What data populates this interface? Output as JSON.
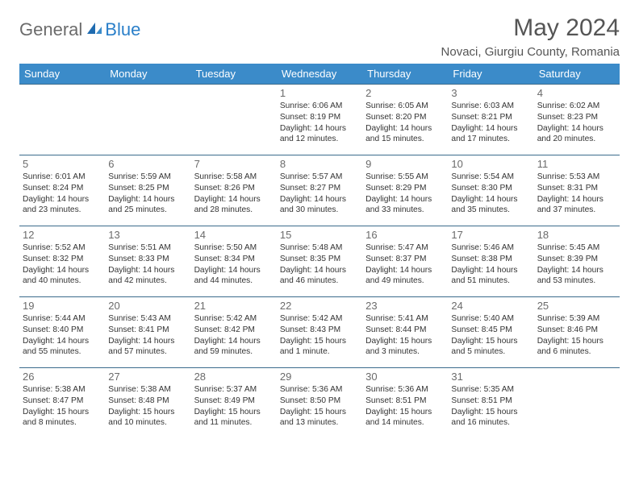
{
  "logo": {
    "part1": "General",
    "part2": "Blue"
  },
  "title": "May 2024",
  "location": "Novaci, Giurgiu County, Romania",
  "colors": {
    "header_bg": "#3b8bc9",
    "header_text": "#ffffff",
    "border": "#3b6b8c",
    "logo_gray": "#6b6b6b",
    "logo_blue": "#2a7fc9",
    "text": "#333333",
    "daynum": "#6b6b6b"
  },
  "weekdays": [
    "Sunday",
    "Monday",
    "Tuesday",
    "Wednesday",
    "Thursday",
    "Friday",
    "Saturday"
  ],
  "weeks": [
    [
      null,
      null,
      null,
      {
        "n": "1",
        "sr": "6:06 AM",
        "ss": "8:19 PM",
        "dl": "14 hours and 12 minutes."
      },
      {
        "n": "2",
        "sr": "6:05 AM",
        "ss": "8:20 PM",
        "dl": "14 hours and 15 minutes."
      },
      {
        "n": "3",
        "sr": "6:03 AM",
        "ss": "8:21 PM",
        "dl": "14 hours and 17 minutes."
      },
      {
        "n": "4",
        "sr": "6:02 AM",
        "ss": "8:23 PM",
        "dl": "14 hours and 20 minutes."
      }
    ],
    [
      {
        "n": "5",
        "sr": "6:01 AM",
        "ss": "8:24 PM",
        "dl": "14 hours and 23 minutes."
      },
      {
        "n": "6",
        "sr": "5:59 AM",
        "ss": "8:25 PM",
        "dl": "14 hours and 25 minutes."
      },
      {
        "n": "7",
        "sr": "5:58 AM",
        "ss": "8:26 PM",
        "dl": "14 hours and 28 minutes."
      },
      {
        "n": "8",
        "sr": "5:57 AM",
        "ss": "8:27 PM",
        "dl": "14 hours and 30 minutes."
      },
      {
        "n": "9",
        "sr": "5:55 AM",
        "ss": "8:29 PM",
        "dl": "14 hours and 33 minutes."
      },
      {
        "n": "10",
        "sr": "5:54 AM",
        "ss": "8:30 PM",
        "dl": "14 hours and 35 minutes."
      },
      {
        "n": "11",
        "sr": "5:53 AM",
        "ss": "8:31 PM",
        "dl": "14 hours and 37 minutes."
      }
    ],
    [
      {
        "n": "12",
        "sr": "5:52 AM",
        "ss": "8:32 PM",
        "dl": "14 hours and 40 minutes."
      },
      {
        "n": "13",
        "sr": "5:51 AM",
        "ss": "8:33 PM",
        "dl": "14 hours and 42 minutes."
      },
      {
        "n": "14",
        "sr": "5:50 AM",
        "ss": "8:34 PM",
        "dl": "14 hours and 44 minutes."
      },
      {
        "n": "15",
        "sr": "5:48 AM",
        "ss": "8:35 PM",
        "dl": "14 hours and 46 minutes."
      },
      {
        "n": "16",
        "sr": "5:47 AM",
        "ss": "8:37 PM",
        "dl": "14 hours and 49 minutes."
      },
      {
        "n": "17",
        "sr": "5:46 AM",
        "ss": "8:38 PM",
        "dl": "14 hours and 51 minutes."
      },
      {
        "n": "18",
        "sr": "5:45 AM",
        "ss": "8:39 PM",
        "dl": "14 hours and 53 minutes."
      }
    ],
    [
      {
        "n": "19",
        "sr": "5:44 AM",
        "ss": "8:40 PM",
        "dl": "14 hours and 55 minutes."
      },
      {
        "n": "20",
        "sr": "5:43 AM",
        "ss": "8:41 PM",
        "dl": "14 hours and 57 minutes."
      },
      {
        "n": "21",
        "sr": "5:42 AM",
        "ss": "8:42 PM",
        "dl": "14 hours and 59 minutes."
      },
      {
        "n": "22",
        "sr": "5:42 AM",
        "ss": "8:43 PM",
        "dl": "15 hours and 1 minute."
      },
      {
        "n": "23",
        "sr": "5:41 AM",
        "ss": "8:44 PM",
        "dl": "15 hours and 3 minutes."
      },
      {
        "n": "24",
        "sr": "5:40 AM",
        "ss": "8:45 PM",
        "dl": "15 hours and 5 minutes."
      },
      {
        "n": "25",
        "sr": "5:39 AM",
        "ss": "8:46 PM",
        "dl": "15 hours and 6 minutes."
      }
    ],
    [
      {
        "n": "26",
        "sr": "5:38 AM",
        "ss": "8:47 PM",
        "dl": "15 hours and 8 minutes."
      },
      {
        "n": "27",
        "sr": "5:38 AM",
        "ss": "8:48 PM",
        "dl": "15 hours and 10 minutes."
      },
      {
        "n": "28",
        "sr": "5:37 AM",
        "ss": "8:49 PM",
        "dl": "15 hours and 11 minutes."
      },
      {
        "n": "29",
        "sr": "5:36 AM",
        "ss": "8:50 PM",
        "dl": "15 hours and 13 minutes."
      },
      {
        "n": "30",
        "sr": "5:36 AM",
        "ss": "8:51 PM",
        "dl": "15 hours and 14 minutes."
      },
      {
        "n": "31",
        "sr": "5:35 AM",
        "ss": "8:51 PM",
        "dl": "15 hours and 16 minutes."
      },
      null
    ]
  ],
  "labels": {
    "sunrise": "Sunrise:",
    "sunset": "Sunset:",
    "daylight": "Daylight:"
  }
}
